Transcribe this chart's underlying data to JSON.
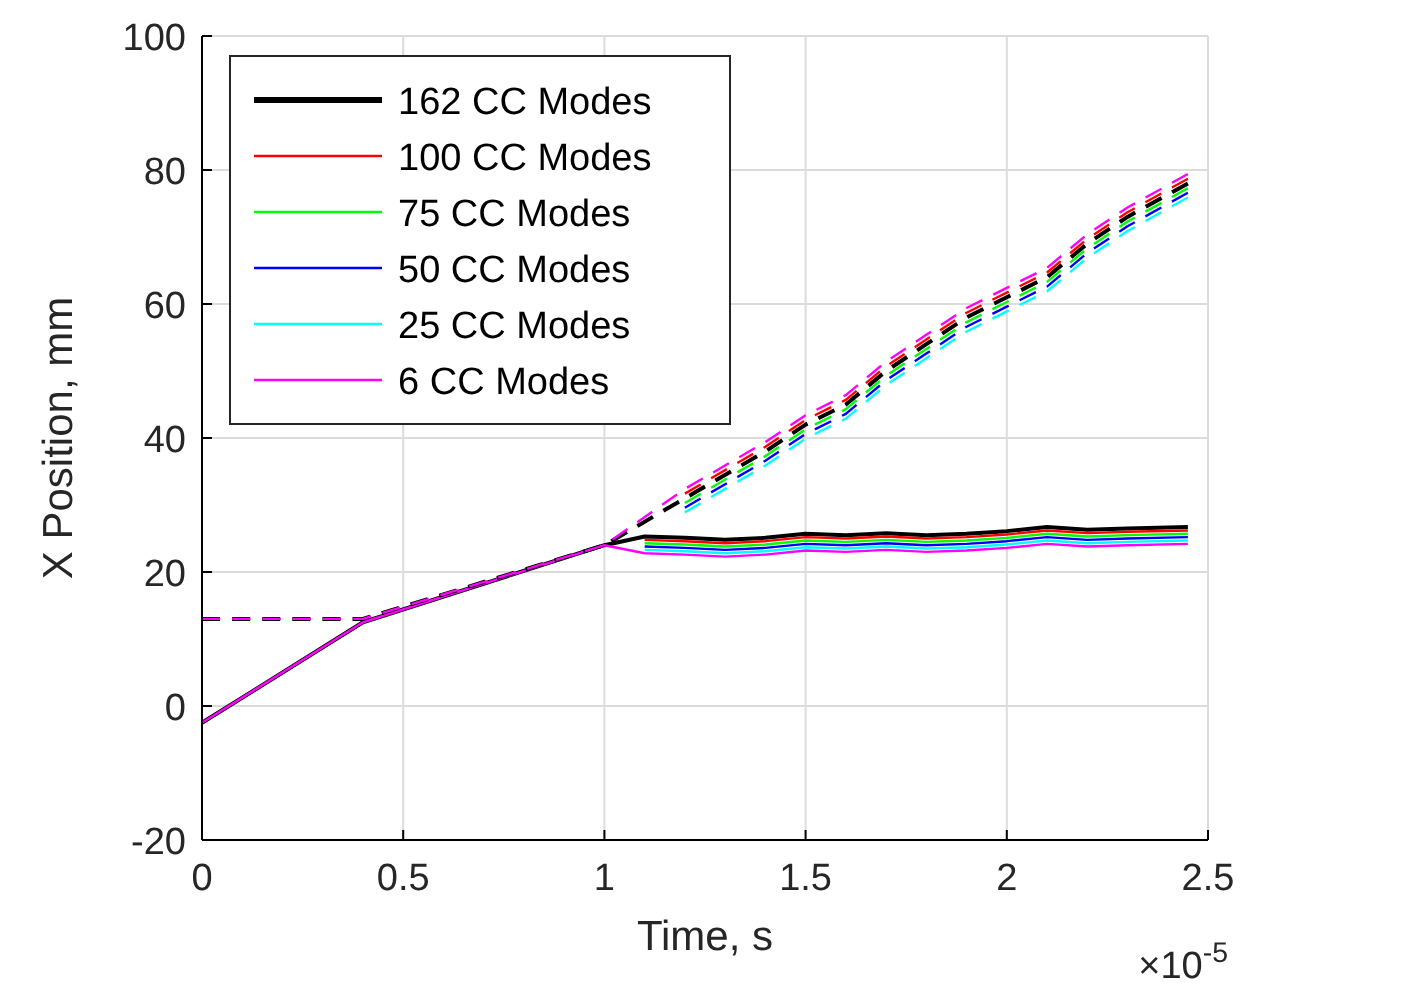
{
  "chart_data": {
    "type": "line",
    "xlabel": "Time, s",
    "ylabel": "X Position, mm",
    "annotations": [
      "×10$^{-5}$"
    ],
    "xlim": [
      0,
      2.5
    ],
    "xticks": [
      0,
      0.5,
      1,
      1.5,
      2,
      2.5
    ],
    "ylim": [
      -20,
      100
    ],
    "yticks": [
      -20,
      0,
      20,
      40,
      60,
      80,
      100
    ],
    "grid": true,
    "legend": "top left",
    "line_style": "solid",
    "series": [
      {
        "name": "162 CC Modes",
        "color": "#000000",
        "x": [
          0,
          0.4,
          1,
          1.1,
          1.2,
          1.3,
          1.4,
          1.5,
          1.6,
          1.7,
          1.8,
          1.9,
          2,
          2.1,
          2.2,
          2.3,
          2.45
        ],
        "values": [
          -2.5,
          12.5,
          24,
          25.3,
          25.1,
          24.8,
          25.1,
          25.7,
          25.5,
          25.8,
          25.5,
          25.7,
          26.1,
          26.7,
          26.3,
          26.5,
          26.7
        ]
      },
      {
        "name": "100 CC Modes",
        "color": "#ff0000",
        "x": [
          1.1,
          1.2,
          1.3,
          1.4,
          1.5,
          1.6,
          1.7,
          1.8,
          1.9,
          2,
          2.1,
          2.2,
          2.3,
          2.45
        ],
        "values": [
          24.8,
          24.6,
          24.3,
          24.6,
          25.2,
          25,
          25.3,
          25,
          25.2,
          25.6,
          26.2,
          25.8,
          26,
          26.2
        ]
      },
      {
        "name": "75 CC Modes",
        "color": "#00ff00",
        "x": [
          1.1,
          1.2,
          1.3,
          1.4,
          1.5,
          1.6,
          1.7,
          1.8,
          1.9,
          2,
          2.1,
          2.2,
          2.3,
          2.45
        ],
        "values": [
          24.3,
          24.1,
          23.8,
          24.1,
          24.7,
          24.5,
          24.8,
          24.5,
          24.7,
          25.1,
          25.7,
          25.3,
          25.5,
          25.7
        ]
      },
      {
        "name": "50 CC Modes",
        "color": "#0000ff",
        "x": [
          1.1,
          1.2,
          1.3,
          1.4,
          1.5,
          1.6,
          1.7,
          1.8,
          1.9,
          2,
          2.1,
          2.2,
          2.3,
          2.45
        ],
        "values": [
          23.8,
          23.6,
          23.3,
          23.6,
          24.2,
          24,
          24.3,
          24,
          24.2,
          24.6,
          25.2,
          24.8,
          25,
          25.2
        ]
      },
      {
        "name": "25 CC Modes",
        "color": "#00ffff",
        "x": [
          1.1,
          1.2,
          1.3,
          1.4,
          1.5,
          1.6,
          1.7,
          1.8,
          1.9,
          2,
          2.1,
          2.2,
          2.3,
          2.45
        ],
        "values": [
          23.3,
          23.1,
          22.8,
          23.1,
          23.7,
          23.5,
          23.8,
          23.5,
          23.7,
          24.1,
          24.7,
          24.3,
          24.5,
          24.7
        ]
      },
      {
        "name": "6 CC Modes",
        "color": "#ff00ff",
        "x": [
          0,
          0.4,
          1,
          1.1,
          1.2,
          1.3,
          1.4,
          1.5,
          1.6,
          1.7,
          1.8,
          1.9,
          2,
          2.1,
          2.2,
          2.3,
          2.45
        ],
        "values": [
          -2.5,
          12.5,
          24,
          22.8,
          22.6,
          22.3,
          22.6,
          23.2,
          23,
          23.3,
          23,
          23.2,
          23.6,
          24.2,
          23.8,
          24,
          24.2
        ]
      },
      {
        "color": "#000000",
        "line_style": "dashed",
        "x": [
          0,
          0.4,
          1,
          1.2,
          1.4,
          1.5,
          1.6,
          1.7,
          1.8,
          1.9,
          2,
          2.1,
          2.2,
          2.3,
          2.45
        ],
        "values": [
          13,
          13,
          24,
          31,
          38,
          42,
          45,
          50,
          54,
          58,
          61,
          64,
          69,
          73,
          78
        ]
      },
      {
        "color": "#ff0000",
        "line_style": "dashed",
        "x": [
          1.2,
          1.4,
          1.5,
          1.6,
          1.7,
          1.8,
          1.9,
          2,
          2.1,
          2.2,
          2.3,
          2.45
        ],
        "values": [
          31.7,
          38.7,
          42.7,
          45.7,
          50.7,
          54.7,
          58.7,
          61.7,
          64.7,
          69.7,
          73.7,
          78.7
        ]
      },
      {
        "color": "#00ff00",
        "line_style": "dashed",
        "x": [
          1.2,
          1.4,
          1.5,
          1.6,
          1.7,
          1.8,
          1.9,
          2,
          2.1,
          2.2,
          2.3,
          2.45
        ],
        "values": [
          30.3,
          37.3,
          41.3,
          44.3,
          49.3,
          53.3,
          57.3,
          60.3,
          63.3,
          68.3,
          72.3,
          77.3
        ]
      },
      {
        "color": "#0000ff",
        "line_style": "dashed",
        "x": [
          1.2,
          1.4,
          1.5,
          1.6,
          1.7,
          1.8,
          1.9,
          2,
          2.1,
          2.2,
          2.3,
          2.45
        ],
        "values": [
          29.6,
          36.6,
          40.6,
          43.6,
          48.6,
          52.6,
          56.6,
          59.6,
          62.6,
          67.6,
          71.6,
          76.6
        ]
      },
      {
        "color": "#00ffff",
        "line_style": "dashed",
        "x": [
          1.2,
          1.4,
          1.5,
          1.6,
          1.7,
          1.8,
          1.9,
          2,
          2.1,
          2.2,
          2.3,
          2.45
        ],
        "values": [
          28.9,
          35.9,
          39.9,
          42.9,
          47.9,
          51.9,
          55.9,
          58.9,
          61.9,
          66.9,
          70.9,
          75.9
        ]
      },
      {
        "color": "#ff00ff",
        "line_style": "dashed",
        "x": [
          0,
          0.4,
          1,
          1.2,
          1.4,
          1.5,
          1.6,
          1.7,
          1.8,
          1.9,
          2,
          2.1,
          2.2,
          2.3,
          2.45
        ],
        "values": [
          13,
          13,
          24,
          32.4,
          39.4,
          43.4,
          46.4,
          51.4,
          55.4,
          59.4,
          62.4,
          65.4,
          70.4,
          74.4,
          79.4
        ]
      }
    ]
  }
}
